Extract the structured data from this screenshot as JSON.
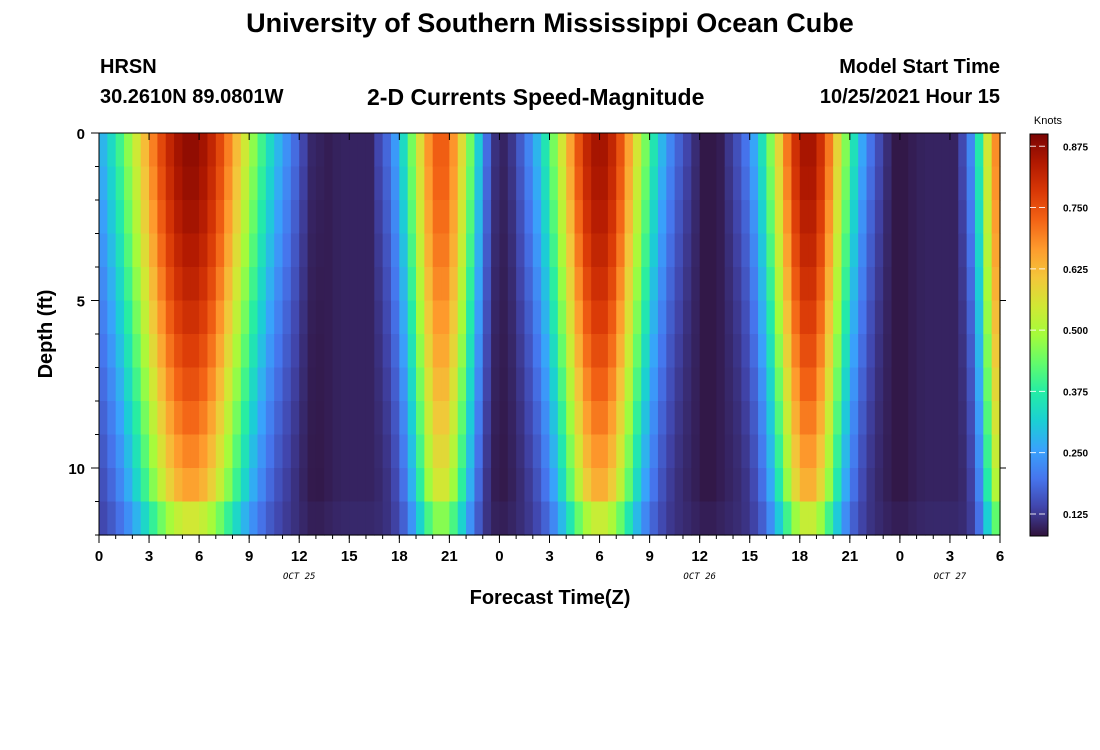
{
  "header": {
    "title": "University of Southern Mississippi Ocean Cube",
    "station": "HRSN",
    "coordinates": "30.2610N  89.0801W",
    "plot_title": "2-D Currents Speed-Magnitude",
    "model_start_label": "Model Start Time",
    "model_start_value": "10/25/2021 Hour 15",
    "footer_title": "University of Southern Mississippi Ocean Cube"
  },
  "chart_data": {
    "type": "heatmap",
    "xlabel": "Forecast Time(Z)",
    "ylabel": "Depth (ft)",
    "x_range_hours": [
      0,
      54
    ],
    "y_range_ft": [
      0,
      12
    ],
    "y_reversed": true,
    "x_tick_labels": [
      "0",
      "3",
      "6",
      "9",
      "12",
      "15",
      "18",
      "21",
      "0",
      "3",
      "6",
      "9",
      "12",
      "15",
      "18",
      "21",
      "0",
      "3",
      "6"
    ],
    "y_tick_labels": [
      "0",
      "5",
      "10"
    ],
    "y_tick_values": [
      0,
      5,
      10
    ],
    "date_labels": [
      {
        "text": "OCT 25",
        "hour": 12
      },
      {
        "text": "OCT 26",
        "hour": 36
      },
      {
        "text": "OCT 27",
        "hour": 51
      }
    ],
    "colorbar": {
      "title": "Knots",
      "range": [
        0.08,
        0.9
      ],
      "ticks": [
        "0.875",
        "0.750",
        "0.625",
        "0.500",
        "0.375",
        "0.250",
        "0.125"
      ],
      "tick_values": [
        0.875,
        0.75,
        0.625,
        0.5,
        0.375,
        0.25,
        0.125
      ],
      "colors": [
        "#30123b",
        "#4145ab",
        "#4675ed",
        "#39a2fc",
        "#1bcfd4",
        "#24eca6",
        "#61fc6c",
        "#a4fc3b",
        "#d1e834",
        "#f3c63a",
        "#fe9b2d",
        "#f36315",
        "#d93806",
        "#b11901",
        "#7a0403"
      ]
    },
    "speed_model": {
      "time_step_hours": 0.5,
      "depth_step_ft": 1,
      "peaks": [
        {
          "center_hour": 5.5,
          "half_width_hours": 5.0,
          "amplitude": 0.88
        },
        {
          "center_hour": 20.5,
          "half_width_hours": 2.6,
          "amplitude": 0.74
        },
        {
          "center_hour": 30.0,
          "half_width_hours": 3.6,
          "amplitude": 0.86
        },
        {
          "center_hour": 42.5,
          "half_width_hours": 3.0,
          "amplitude": 0.86
        },
        {
          "center_hour": 54.0,
          "half_width_hours": 1.6,
          "amplitude": 0.7
        }
      ],
      "slack_hours": [
        13,
        24,
        36.5,
        48
      ]
    }
  }
}
